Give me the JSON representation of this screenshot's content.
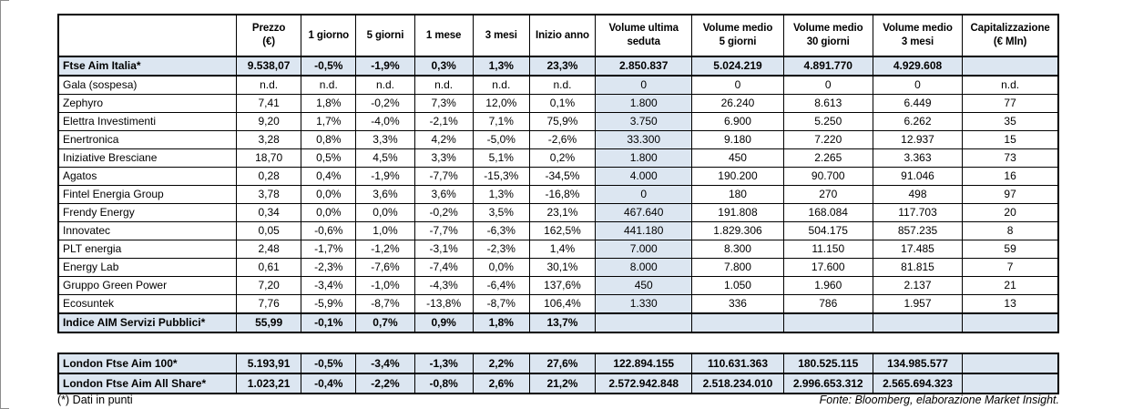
{
  "page": {
    "footnote": "(*) Dati in punti",
    "source": "Fonte: Bloomberg, elaborazione Market Insight."
  },
  "colors": {
    "highlight_row": "#dce6f1",
    "volume_column": "#dce6f1",
    "border": "#000000",
    "background": "#ffffff"
  },
  "table": {
    "columns": [
      {
        "id": "name",
        "lines": [
          ""
        ]
      },
      {
        "id": "prezzo",
        "lines": [
          "Prezzo",
          "(€)"
        ]
      },
      {
        "id": "g1",
        "lines": [
          "1 giorno"
        ]
      },
      {
        "id": "g5",
        "lines": [
          "5 giorni"
        ]
      },
      {
        "id": "m1",
        "lines": [
          "1 mese"
        ]
      },
      {
        "id": "m3",
        "lines": [
          "3 mesi"
        ]
      },
      {
        "id": "ytd",
        "lines": [
          "Inizio anno"
        ]
      },
      {
        "id": "vol_ultima",
        "lines": [
          "Volume ultima",
          "seduta"
        ]
      },
      {
        "id": "vol_5g",
        "lines": [
          "Volume medio",
          "5 giorni"
        ]
      },
      {
        "id": "vol_30g",
        "lines": [
          "Volume medio",
          "30 giorni"
        ]
      },
      {
        "id": "vol_3m",
        "lines": [
          "Volume medio",
          "3 mesi"
        ]
      },
      {
        "id": "cap",
        "lines": [
          "Capitalizzazione",
          "(€ Mln)"
        ]
      }
    ],
    "rows": [
      {
        "name": "Ftse Aim Italia*",
        "highlight": true,
        "values": [
          "9.538,07",
          "-0,5%",
          "-1,9%",
          "0,3%",
          "1,3%",
          "23,3%",
          "2.850.837",
          "5.024.219",
          "4.891.770",
          "4.929.608",
          ""
        ]
      },
      {
        "name": "Gala (sospesa)",
        "highlight": false,
        "values": [
          "n.d.",
          "n.d.",
          "n.d.",
          "n.d.",
          "n.d.",
          "n.d.",
          "0",
          "0",
          "0",
          "0",
          "n.d."
        ]
      },
      {
        "name": "Zephyro",
        "highlight": false,
        "values": [
          "7,41",
          "1,8%",
          "-0,2%",
          "7,3%",
          "12,0%",
          "0,1%",
          "1.800",
          "26.240",
          "8.613",
          "6.449",
          "77"
        ]
      },
      {
        "name": "Elettra Investimenti",
        "highlight": false,
        "values": [
          "9,20",
          "1,7%",
          "-4,0%",
          "-2,1%",
          "7,1%",
          "75,9%",
          "3.750",
          "6.900",
          "5.250",
          "6.262",
          "35"
        ]
      },
      {
        "name": "Enertronica",
        "highlight": false,
        "values": [
          "3,28",
          "0,8%",
          "3,3%",
          "4,2%",
          "-5,0%",
          "-2,6%",
          "33.300",
          "9.180",
          "7.220",
          "12.937",
          "15"
        ]
      },
      {
        "name": "Iniziative Bresciane",
        "highlight": false,
        "values": [
          "18,70",
          "0,5%",
          "4,5%",
          "3,3%",
          "5,1%",
          "0,2%",
          "1.800",
          "450",
          "2.265",
          "3.363",
          "73"
        ]
      },
      {
        "name": "Agatos",
        "highlight": false,
        "values": [
          "0,28",
          "0,4%",
          "-1,9%",
          "-7,7%",
          "-15,3%",
          "-34,5%",
          "4.000",
          "190.200",
          "90.700",
          "91.046",
          "16"
        ]
      },
      {
        "name": "Fintel Energia Group",
        "highlight": false,
        "values": [
          "3,78",
          "0,0%",
          "3,6%",
          "3,6%",
          "1,3%",
          "-16,8%",
          "0",
          "180",
          "270",
          "498",
          "97"
        ]
      },
      {
        "name": "Frendy Energy",
        "highlight": false,
        "values": [
          "0,34",
          "0,0%",
          "0,0%",
          "-0,2%",
          "3,5%",
          "23,1%",
          "467.640",
          "191.808",
          "168.084",
          "117.703",
          "20"
        ]
      },
      {
        "name": "Innovatec",
        "highlight": false,
        "values": [
          "0,05",
          "-0,6%",
          "1,0%",
          "-7,7%",
          "-6,3%",
          "162,5%",
          "441.180",
          "1.829.306",
          "504.175",
          "857.235",
          "8"
        ]
      },
      {
        "name": "PLT energia",
        "highlight": false,
        "values": [
          "2,48",
          "-1,7%",
          "-1,2%",
          "-3,1%",
          "-2,3%",
          "1,4%",
          "7.000",
          "8.300",
          "11.150",
          "17.485",
          "59"
        ]
      },
      {
        "name": "Energy Lab",
        "highlight": false,
        "values": [
          "0,61",
          "-2,3%",
          "-7,6%",
          "-7,4%",
          "0,0%",
          "30,1%",
          "8.000",
          "7.800",
          "17.600",
          "81.815",
          "7"
        ]
      },
      {
        "name": "Gruppo Green Power",
        "highlight": false,
        "values": [
          "7,20",
          "-3,4%",
          "-1,0%",
          "-4,3%",
          "-6,4%",
          "137,6%",
          "450",
          "1.050",
          "1.960",
          "2.137",
          "21"
        ]
      },
      {
        "name": "Ecosuntek",
        "highlight": false,
        "values": [
          "7,76",
          "-5,9%",
          "-8,7%",
          "-13,8%",
          "-8,7%",
          "106,4%",
          "1.330",
          "336",
          "786",
          "1.957",
          "13"
        ]
      },
      {
        "name": "Indice AIM Servizi Pubblici*",
        "highlight": true,
        "values": [
          "55,99",
          "-0,1%",
          "0,7%",
          "0,9%",
          "1,8%",
          "13,7%",
          "",
          "",
          "",
          "",
          ""
        ]
      }
    ],
    "london_rows": [
      {
        "name": "London Ftse Aim 100*",
        "highlight": true,
        "values": [
          "5.193,91",
          "-0,5%",
          "-3,4%",
          "-1,3%",
          "2,2%",
          "27,6%",
          "122.894.155",
          "110.631.363",
          "180.525.115",
          "134.985.577",
          ""
        ]
      },
      {
        "name": "London Ftse Aim All Share*",
        "highlight": true,
        "values": [
          "1.023,21",
          "-0,4%",
          "-2,2%",
          "-0,8%",
          "2,6%",
          "21,2%",
          "2.572.942.848",
          "2.518.234.010",
          "2.996.653.312",
          "2.565.694.323",
          ""
        ]
      }
    ]
  }
}
